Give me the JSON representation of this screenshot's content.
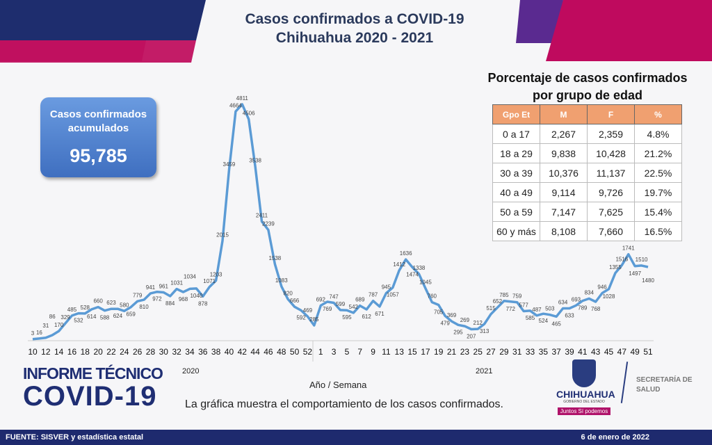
{
  "header": {
    "title_line1": "Casos confirmados a COVID-19",
    "title_line2": "Chihuahua 2020 - 2021"
  },
  "kpi": {
    "label": "Casos confirmados acumulados",
    "value": "95,785"
  },
  "age_table": {
    "title": "Porcentaje de casos confirmados por grupo de edad",
    "columns": [
      "Gpo Et",
      "M",
      "F",
      "%"
    ],
    "rows": [
      [
        "0 a 17",
        "2,267",
        "2,359",
        "4.8%"
      ],
      [
        "18 a 29",
        "9,838",
        "10,428",
        "21.2%"
      ],
      [
        "30 a 39",
        "10,376",
        "11,137",
        "22.5%"
      ],
      [
        "40 a 49",
        "9,114",
        "9,726",
        "19.7%"
      ],
      [
        "50 a 59",
        "7,147",
        "7,625",
        "15.4%"
      ],
      [
        "60 y más",
        "8,108",
        "7,660",
        "16.5%"
      ]
    ]
  },
  "chart_data": {
    "type": "line",
    "title": "Casos confirmados a COVID-19 Chihuahua 2020 - 2021",
    "xlabel": "Año / Semana",
    "ylabel": "",
    "year_labels": [
      "2020",
      "2021"
    ],
    "series": [
      {
        "name": "2020",
        "weeks_start": 10,
        "values": [
          3,
          16,
          31,
          86,
          170,
          329,
          485,
          532,
          528,
          614,
          660,
          588,
          623,
          624,
          580,
          659,
          779,
          810,
          941,
          972,
          961,
          884,
          1031,
          968,
          1034,
          1040,
          878,
          1071,
          1203,
          2015,
          3459,
          4664,
          4811,
          4506,
          3538,
          2411,
          2239,
          1538,
          1083,
          820,
          666,
          592,
          469,
          285
        ]
      },
      {
        "name": "2021",
        "weeks_start": 1,
        "values": [
          692,
          769,
          747,
          599,
          595,
          542,
          689,
          612,
          787,
          671,
          945,
          1057,
          1412,
          1636,
          1474,
          1338,
          1045,
          760,
          705,
          479,
          369,
          295,
          269,
          207,
          212,
          313,
          515,
          652,
          785,
          772,
          759,
          577,
          585,
          487,
          524,
          503,
          465,
          634,
          633,
          693,
          789,
          834,
          768,
          946,
          1028,
          1355,
          1516,
          1741,
          1497,
          1510,
          1480
        ]
      }
    ],
    "ylim": [
      0,
      4811
    ],
    "color": "#5b9bd5"
  },
  "branding": {
    "line1": "INFORME TÉCNICO",
    "line2": "COVID-19",
    "gov_name": "CHIHUAHUA",
    "gov_sub": "GOBIERNO DEL ESTADO",
    "slogan": "Juntos Sí podemos",
    "secretaria": "SECRETARÍA DE",
    "salud": "SALUD"
  },
  "caption": "La gráfica muestra el comportamiento de los casos confirmados.",
  "footer": {
    "source": "FUENTE: SISVER y estadística estatal",
    "date": "6 de enero de 2022"
  }
}
